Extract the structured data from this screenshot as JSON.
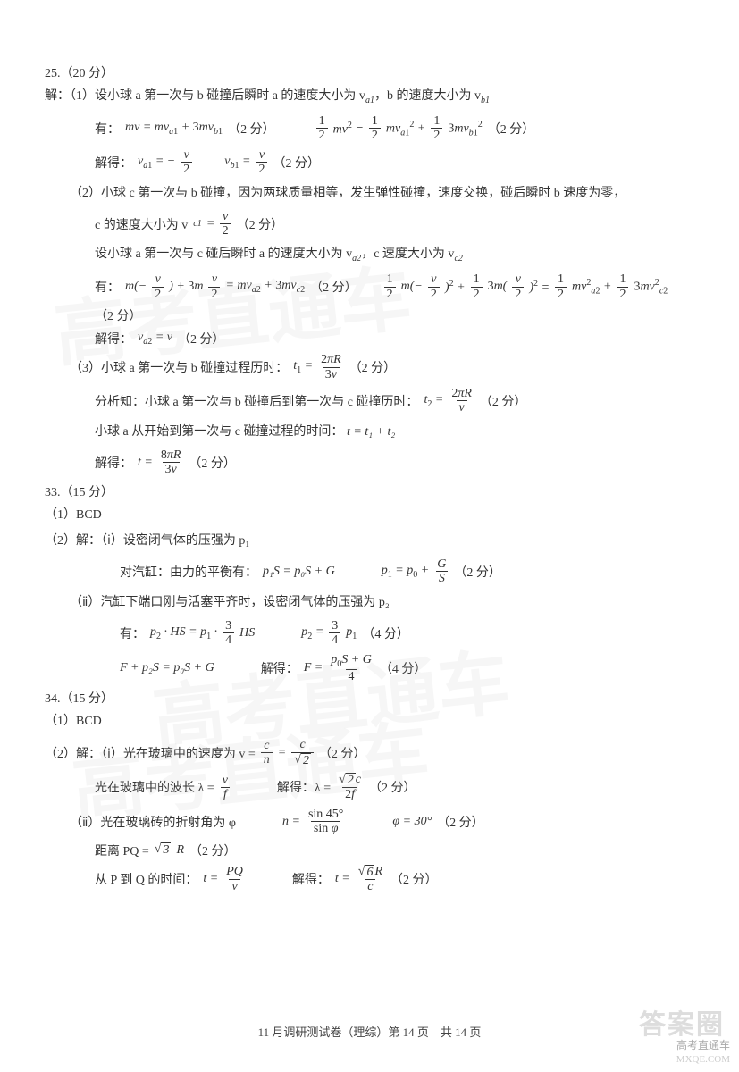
{
  "colors": {
    "text": "#333333",
    "bg": "#ffffff",
    "watermark": "rgba(170,170,170,0.10)",
    "footer": "#444444"
  },
  "q25": {
    "header": "25.（20 分）",
    "p1_intro": "解：（1）设小球 a 第一次与 b 碰撞后瞬时 a 的速度大小为 v",
    "p1_intro_sub1": "a1",
    "p1_intro_mid": "，b 的速度大小为 v",
    "p1_intro_sub2": "b1",
    "p1_have": "有：",
    "p1_eq1_lhs": "mv = mv",
    "p1_eq1_rhs": "+ 3mv",
    "pts2": "（2 分）",
    "pts4": "（4 分）",
    "p1_solve": "解得：",
    "p2_intro": "（2）小球 c 第一次与 b 碰撞，因为两球质量相等，发生弹性碰撞，速度交换，碰后瞬时 b 速度为零，",
    "p2_c_speed": "c 的速度大小为 v",
    "p2_c_sub": "c1",
    "p2_eq_label": "=",
    "p2_set": "设小球 a 第一次与 c 碰后瞬时 a 的速度大小为 v",
    "p2_set_mid": "，c 速度大小为 v",
    "p2_have": "有：",
    "p2_solve": "解得：",
    "p2_solve_eq": "v",
    "p2_solve_sub": "a2",
    "p2_solve_rhs": "= v",
    "p3_intro": "（3）小球 a 第一次与 b 碰撞过程历时：",
    "p3_analysis": "分析知：小球 a 第一次与 b 碰撞后到第一次与 c 碰撞历时：",
    "p3_sum": "小球 a 从开始到第一次与 c 碰撞过程的时间：",
    "p3_sum_eq": "t = t₁ + t₂",
    "p3_solve": "解得："
  },
  "q33": {
    "header": "33.（15 分）",
    "p1": "（1）BCD",
    "p2_intro": "（2）解：（ⅰ）设密闭气体的压强为 p₁",
    "p2_balance": "对汽缸：由力的平衡有：",
    "p2_eq1": "p₁S = p₀S + G",
    "p2_ii": "（ⅱ）汽缸下端口刚与活塞平齐时，设密闭气体的压强为 p₂",
    "p2_have": "有：",
    "p2_F": "F + p₂S = p₀S + G",
    "p2_solve": "解得："
  },
  "q34": {
    "header": "34.（15 分）",
    "p1": "（1）BCD",
    "p2_intro": "（2）解：（ⅰ）光在玻璃中的速度为 v =",
    "p2_wave": "光在玻璃中的波长 λ =",
    "p2_solve_wave": "解得：λ =",
    "p2_ii": "（ⅱ）光在玻璃砖的折射角为 φ",
    "p2_phi": "φ = 30°",
    "p2_dist": "距离 PQ =",
    "p2_time": "从 P 到 Q 的时间：",
    "p2_t_solve": "解得："
  },
  "footer": "11 月调研测试卷（理综）第 14 页　共 14 页",
  "watermark_text": "高考直通车",
  "corner_brand": "高考直通车",
  "corner_url": "MXQE.COM",
  "stamp": "答案圈"
}
